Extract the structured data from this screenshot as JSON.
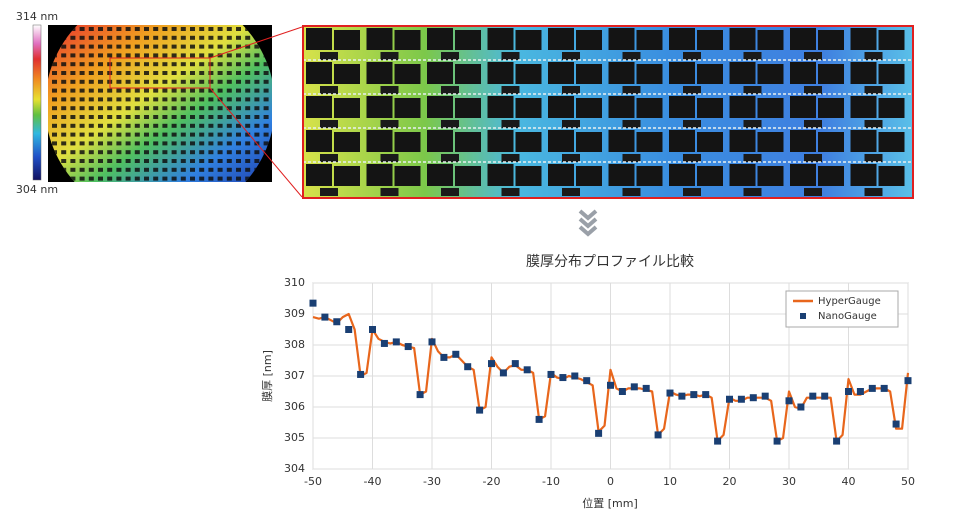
{
  "colorbar": {
    "max_label": "314 nm",
    "min_label": "304 nm"
  },
  "chart_data": {
    "type": "line",
    "title": "膜厚分布プロファイル比較",
    "x_label": "位置 [mm]",
    "y_label": "膜厚 [nm]",
    "xlim": [
      -50,
      50
    ],
    "xticks": [
      -50,
      -40,
      -30,
      -20,
      -10,
      0,
      10,
      20,
      30,
      40,
      50
    ],
    "ylim": [
      304,
      310
    ],
    "yticks": [
      304,
      305,
      306,
      307,
      308,
      309,
      310
    ],
    "grid": true,
    "legend": "upper right",
    "series": [
      {
        "name": "HyperGauge",
        "color": "#e8661c",
        "marker": "none",
        "x": [
          -50,
          -49,
          -48,
          -47,
          -46,
          -45,
          -44,
          -43,
          -42,
          -41,
          -40,
          -39,
          -38,
          -37,
          -36,
          -35,
          -34,
          -33,
          -32,
          -31,
          -30,
          -29,
          -28,
          -27,
          -26,
          -25,
          -24,
          -23,
          -22,
          -21,
          -20,
          -19,
          -18,
          -17,
          -16,
          -15,
          -14,
          -13,
          -12,
          -11,
          -10,
          -9,
          -8,
          -7,
          -6,
          -5,
          -4,
          -3,
          -2,
          -1,
          0,
          1,
          2,
          3,
          4,
          5,
          6,
          7,
          8,
          9,
          10,
          11,
          12,
          13,
          14,
          15,
          16,
          17,
          18,
          19,
          20,
          21,
          22,
          23,
          24,
          25,
          26,
          27,
          28,
          29,
          30,
          31,
          32,
          33,
          34,
          35,
          36,
          37,
          38,
          39,
          40,
          41,
          42,
          43,
          44,
          45,
          46,
          47,
          48,
          49,
          50
        ],
        "values": [
          308.9,
          308.85,
          308.9,
          308.8,
          308.7,
          308.9,
          309.0,
          308.5,
          307.0,
          307.1,
          308.5,
          308.2,
          308.1,
          308.05,
          308.1,
          308.0,
          307.95,
          307.9,
          306.4,
          306.5,
          308.2,
          307.8,
          307.6,
          307.6,
          307.7,
          307.5,
          307.3,
          307.2,
          305.9,
          306.0,
          307.6,
          307.3,
          307.1,
          307.3,
          307.35,
          307.2,
          307.2,
          307.1,
          305.6,
          305.7,
          307.1,
          306.95,
          306.9,
          307.0,
          306.95,
          306.9,
          306.8,
          306.7,
          305.2,
          305.4,
          307.2,
          306.6,
          306.5,
          306.6,
          306.6,
          306.6,
          306.55,
          306.5,
          305.1,
          305.3,
          306.5,
          306.4,
          306.35,
          306.4,
          306.4,
          306.35,
          306.4,
          306.3,
          304.9,
          305.1,
          306.3,
          306.2,
          306.2,
          306.3,
          306.3,
          306.3,
          306.3,
          306.2,
          304.9,
          305.0,
          306.5,
          306.0,
          305.95,
          306.3,
          306.3,
          306.3,
          306.3,
          306.3,
          304.9,
          305.1,
          306.9,
          306.4,
          306.4,
          306.5,
          306.6,
          306.6,
          306.6,
          306.5,
          305.3,
          305.3,
          307.1
        ]
      },
      {
        "name": "NanoGauge",
        "color": "#1a3f73",
        "marker": "square",
        "x": [
          -50,
          -48,
          -46,
          -44,
          -42,
          -40,
          -38,
          -36,
          -34,
          -32,
          -30,
          -28,
          -26,
          -24,
          -22,
          -20,
          -18,
          -16,
          -14,
          -12,
          -10,
          -8,
          -6,
          -4,
          -2,
          0,
          2,
          4,
          6,
          8,
          10,
          12,
          14,
          16,
          18,
          20,
          22,
          24,
          26,
          28,
          30,
          32,
          34,
          36,
          38,
          40,
          42,
          44,
          46,
          48,
          50
        ],
        "values": [
          309.35,
          308.9,
          308.75,
          308.5,
          307.05,
          308.5,
          308.05,
          308.1,
          307.95,
          306.4,
          308.1,
          307.6,
          307.7,
          307.3,
          305.9,
          307.4,
          307.1,
          307.4,
          307.2,
          305.6,
          307.05,
          306.95,
          307.0,
          306.85,
          305.15,
          306.7,
          306.5,
          306.65,
          306.6,
          305.1,
          306.45,
          306.35,
          306.4,
          306.4,
          304.9,
          306.25,
          306.25,
          306.3,
          306.35,
          304.9,
          306.2,
          306.0,
          306.35,
          306.35,
          304.9,
          306.5,
          306.5,
          306.6,
          306.6,
          305.45,
          306.85
        ]
      }
    ]
  }
}
